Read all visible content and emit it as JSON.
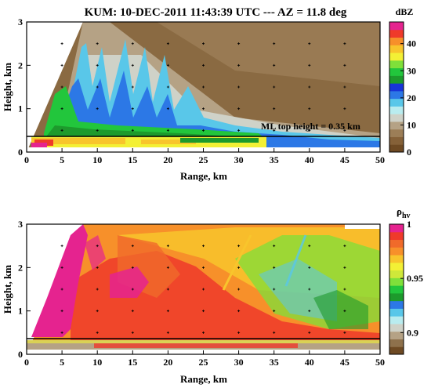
{
  "title": "KUM: 10-DEC-2011 11:43:39 UTC  ---  AZ = 11.8 deg",
  "chart_data": [
    {
      "type": "heatmap",
      "variable": "dBZ",
      "xlabel": "Range, km",
      "ylabel": "Height, km",
      "xlim": [
        0,
        50
      ],
      "ylim": [
        0,
        3
      ],
      "x_ticks": [
        "0",
        "5",
        "10",
        "15",
        "20",
        "25",
        "30",
        "35",
        "40",
        "45",
        "50"
      ],
      "y_ticks": [
        "0",
        "1",
        "2",
        "3"
      ],
      "colorbar": {
        "label": "dBZ",
        "range": [
          0,
          48
        ],
        "ticks": [
          "0",
          "10",
          "20",
          "30",
          "40"
        ],
        "colors": [
          "#6e4a23",
          "#856138",
          "#9c7e57",
          "#b5a285",
          "#cfd2c8",
          "#b9ecef",
          "#59c7e9",
          "#2c78e6",
          "#1734d8",
          "#1d9a2c",
          "#22c63c",
          "#7fe03a",
          "#f3f035",
          "#f8c52c",
          "#f7902a",
          "#ef3a2a",
          "#e5238f"
        ]
      },
      "reference_line": {
        "y": 0.35,
        "label": "ML top height = 0.35 km"
      },
      "grid": "dotted markers"
    },
    {
      "type": "heatmap",
      "variable": "ρhv",
      "xlabel": "Range, km",
      "ylabel": "Height, km",
      "xlim": [
        0,
        50
      ],
      "ylim": [
        0,
        3
      ],
      "x_ticks": [
        "0",
        "5",
        "10",
        "15",
        "20",
        "25",
        "30",
        "35",
        "40",
        "45",
        "50"
      ],
      "y_ticks": [
        "0",
        "1",
        "2",
        "3"
      ],
      "colorbar": {
        "label_main": "ρ",
        "label_sub": "hv",
        "range": [
          0.88,
          1.0
        ],
        "ticks": [
          "0.9",
          "0.95",
          "1"
        ],
        "colors": [
          "#6e4a23",
          "#8e714c",
          "#b5a285",
          "#cfd2c8",
          "#b9ecef",
          "#59c7e9",
          "#2c78e6",
          "#1d9a2c",
          "#22c63c",
          "#7fe03a",
          "#cfe83a",
          "#f3f035",
          "#f8c52c",
          "#f7902a",
          "#f06a2a",
          "#ef3a2a",
          "#e5238f"
        ]
      },
      "reference_line": {
        "y": 0.35
      },
      "grid": "dotted markers"
    }
  ]
}
